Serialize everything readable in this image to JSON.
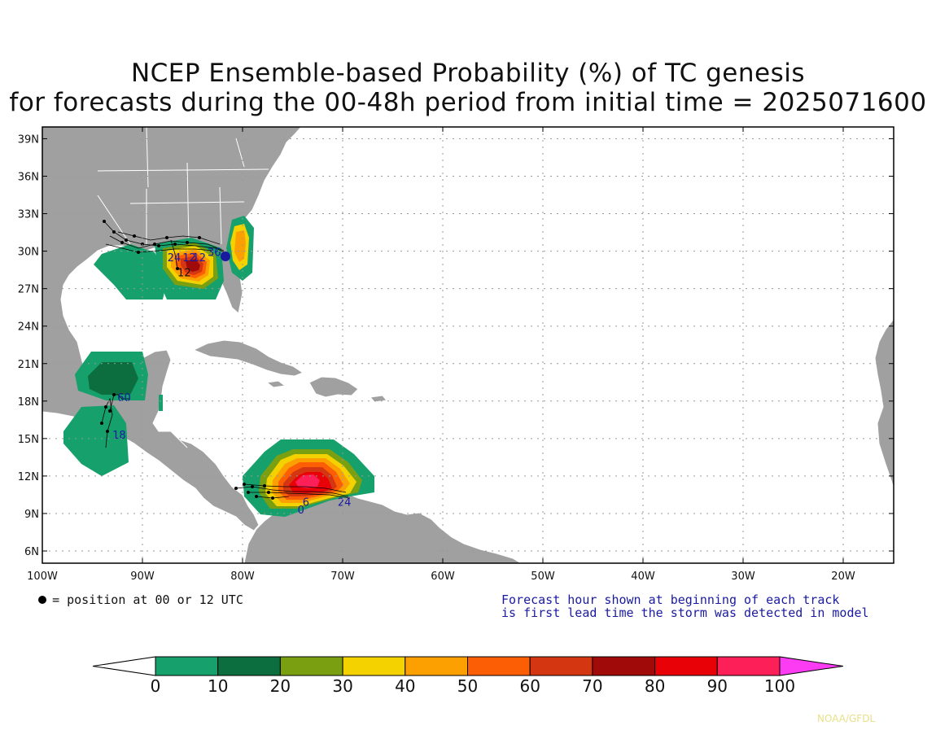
{
  "title_line1": "NCEP Ensemble-based Probability (%) of TC genesis",
  "title_line2": "for forecasts during the 00-48h period from initial time = 2025071600",
  "lat_ticks": [
    "39N",
    "36N",
    "33N",
    "30N",
    "27N",
    "24N",
    "21N",
    "18N",
    "15N",
    "12N",
    "9N",
    "6N"
  ],
  "lon_ticks": [
    "100W",
    "90W",
    "80W",
    "70W",
    "60W",
    "50W",
    "40W",
    "30W",
    "20W"
  ],
  "legend_position_text": "= position at 00 or 12 UTC",
  "forecast_note_line1": "Forecast hour shown at beginning of each track",
  "forecast_note_line2": "is first lead time the storm was detected in model",
  "colorbar": {
    "labels": [
      "0",
      "10",
      "20",
      "30",
      "40",
      "50",
      "60",
      "70",
      "80",
      "90",
      "100"
    ],
    "colors": [
      "#16a06c",
      "#0c6e3e",
      "#7aa012",
      "#f4d200",
      "#fba000",
      "#fc5e05",
      "#d43612",
      "#a00a08",
      "#e80208",
      "#fc1f58",
      "#fc3cf2"
    ]
  },
  "credit": "NOAA/GFDL",
  "track_labels": [
    {
      "text": "12",
      "lon": -86.5,
      "lat": 28.0,
      "color": "#111111"
    },
    {
      "text": "24",
      "lon": -87.5,
      "lat": 29.2,
      "color": "#1a1aa0"
    },
    {
      "text": "12",
      "lon": -86.0,
      "lat": 29.2,
      "color": "#1a1aa0"
    },
    {
      "text": "12",
      "lon": -85.0,
      "lat": 29.2,
      "color": "#1a1aa0"
    },
    {
      "text": "36",
      "lon": -83.5,
      "lat": 29.6,
      "color": "#1a1aa0"
    },
    {
      "text": "60",
      "lon": -92.5,
      "lat": 18.0,
      "color": "#1a1aa0"
    },
    {
      "text": "18",
      "lon": -93.0,
      "lat": 15.0,
      "color": "#1a1aa0"
    },
    {
      "text": "0",
      "lon": -74.5,
      "lat": 9.0,
      "color": "#1a1aa0"
    },
    {
      "text": "6",
      "lon": -74.0,
      "lat": 9.6,
      "color": "#1a1aa0"
    },
    {
      "text": "24",
      "lon": -70.5,
      "lat": 9.6,
      "color": "#1a1aa0"
    }
  ]
}
